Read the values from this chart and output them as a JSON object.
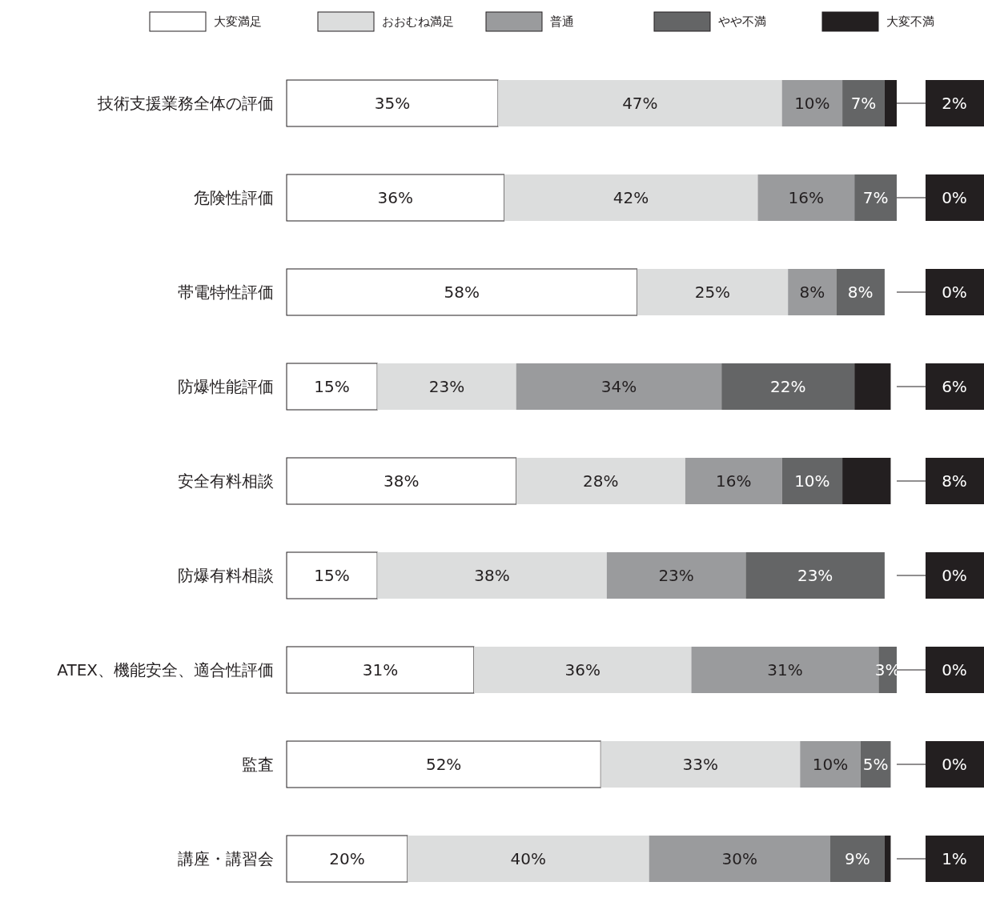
{
  "chart_data": {
    "type": "bar",
    "orientation": "horizontal",
    "stacked": true,
    "legend": "top",
    "categories": [
      "技術支援業務全体の評価",
      "危険性評価",
      "帯電特性評価",
      "防爆性能評価",
      "安全有料相談",
      "防爆有料相談",
      "ATEX、機能安全、適合性評価",
      "監査",
      "講座・講習会"
    ],
    "series": [
      {
        "name": "大変満足",
        "color": "#ffffff",
        "values": [
          35,
          36,
          58,
          15,
          38,
          15,
          31,
          52,
          20
        ],
        "value_labels": [
          "35%",
          "36%",
          "58%",
          "15%",
          "38%",
          "15%",
          "31%",
          "52%",
          "20%"
        ]
      },
      {
        "name": "おおむね満足",
        "color": "#dcdddd",
        "values": [
          47,
          42,
          25,
          23,
          28,
          38,
          36,
          33,
          40
        ],
        "value_labels": [
          "47%",
          "42%",
          "25%",
          "23%",
          "28%",
          "38%",
          "36%",
          "33%",
          "40%"
        ]
      },
      {
        "name": "普通",
        "color": "#9a9b9d",
        "values": [
          10,
          16,
          8,
          34,
          16,
          23,
          31,
          10,
          30
        ],
        "value_labels": [
          "10%",
          "16%",
          "8%",
          "34%",
          "16%",
          "23%",
          "31%",
          "10%",
          "30%"
        ]
      },
      {
        "name": "やや不満",
        "color": "#646566",
        "values": [
          7,
          7,
          8,
          22,
          10,
          23,
          3,
          5,
          9
        ],
        "value_labels": [
          "7%",
          "7%",
          "8%",
          "22%",
          "10%",
          "23%",
          "3%",
          "5%",
          "9%"
        ]
      },
      {
        "name": "大変不満",
        "color": "#231f20",
        "values": [
          2,
          0,
          0,
          6,
          8,
          0,
          0,
          0,
          1
        ],
        "value_labels": [
          "2%",
          "0%",
          "0%",
          "6%",
          "8%",
          "0%",
          "0%",
          "0%",
          "1%"
        ]
      }
    ]
  }
}
